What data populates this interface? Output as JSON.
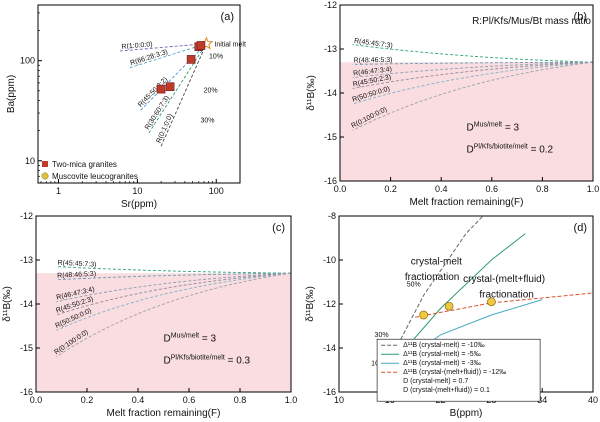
{
  "chart_data": [
    {
      "panel": "(a)",
      "type": "scatter",
      "xlabel": "Sr(ppm)",
      "ylabel": "Ba(ppm)",
      "xscale": "log",
      "yscale": "log",
      "xlim": [
        0.55,
        200
      ],
      "ylim": [
        6,
        360
      ],
      "xticks": [
        {
          "v": 1,
          "label": "1"
        },
        {
          "v": 10,
          "label": "10"
        },
        {
          "v": 100,
          "label": "100"
        }
      ],
      "yticks": [
        {
          "v": 10,
          "label": "10"
        },
        {
          "v": 100,
          "label": "100"
        }
      ],
      "initial_melt": {
        "x": 75,
        "y": 148,
        "label": "Initial melt"
      },
      "curves": [
        {
          "label": "R(1:0:0:0)",
          "from": [
            6,
            125
          ]
        },
        {
          "label": "R(66:28:3:3)",
          "from": [
            8,
            85
          ]
        },
        {
          "label": "R(45:50:3:2)",
          "from": [
            11,
            32
          ]
        },
        {
          "label": "R(30:60:7:3)",
          "from": [
            14,
            19
          ]
        },
        {
          "label": "R(0:1:0:0)",
          "from": [
            20,
            14
          ]
        }
      ],
      "pct_labels": [
        {
          "label": "10%",
          "x": 68,
          "y": 105
        },
        {
          "label": "20%",
          "x": 58,
          "y": 48
        },
        {
          "label": "30%",
          "x": 53,
          "y": 24
        }
      ],
      "series": [
        {
          "name": "Two-mica granites",
          "marker": "square",
          "color": "#c0392b",
          "points": [
            [
              20,
              52
            ],
            [
              26,
              55
            ],
            [
              48,
              103
            ],
            [
              60,
              138
            ],
            [
              64,
              142
            ]
          ]
        },
        {
          "name": "Muscovite leucogranites",
          "marker": "circle",
          "color": "#e2c13b",
          "points": []
        }
      ]
    },
    {
      "panel": "(b)",
      "type": "line",
      "title": "R:Pl/Kfs/Mus/Bt mass ratio",
      "xlabel": "Melt fraction remaining(F)",
      "ylabel": "δ¹¹B(‰)",
      "xlim": [
        0,
        1
      ],
      "ylim": [
        -16,
        -12
      ],
      "xticks": [
        {
          "v": 0,
          "label": "0.0"
        },
        {
          "v": 0.2,
          "label": "0.2"
        },
        {
          "v": 0.4,
          "label": "0.4"
        },
        {
          "v": 0.6,
          "label": "0.6"
        },
        {
          "v": 0.8,
          "label": "0.8"
        },
        {
          "v": 1,
          "label": "1.0"
        }
      ],
      "yticks": [
        {
          "v": -16,
          "label": "-16"
        },
        {
          "v": -15,
          "label": "-15"
        },
        {
          "v": -14,
          "label": "-14"
        },
        {
          "v": -13,
          "label": "-13"
        },
        {
          "v": -12,
          "label": "-12"
        }
      ],
      "shade_below": -13.3,
      "start": [
        1,
        -13.3
      ],
      "curves": [
        {
          "label": "R(45:45:7:3)",
          "end": [
            0.05,
            -12.9
          ]
        },
        {
          "label": "R(48:46:5:3)",
          "end": [
            0.05,
            -13.35
          ]
        },
        {
          "label": "R(46:47:3:4)",
          "end": [
            0.05,
            -13.65
          ]
        },
        {
          "label": "R(45:50:2:3)",
          "end": [
            0.05,
            -13.9
          ]
        },
        {
          "label": "R(50:50:0:0)",
          "end": [
            0.05,
            -14.25
          ]
        },
        {
          "label": "R(0:100:0:0)",
          "end": [
            0.05,
            -14.85
          ]
        }
      ],
      "note1": "D",
      "note1_sup": "Mus/melt",
      "note1_val": " = 3",
      "note2": "D",
      "note2_sup": "Pl/Kfs/biotite/melt",
      "note2_val": " = 0.2"
    },
    {
      "panel": "(c)",
      "type": "line",
      "xlabel": "Melt fraction remaining(F)",
      "ylabel": "δ¹¹B(‰)",
      "xlim": [
        0,
        1
      ],
      "ylim": [
        -16,
        -12
      ],
      "xticks": [
        {
          "v": 0,
          "label": "0.0"
        },
        {
          "v": 0.2,
          "label": "0.2"
        },
        {
          "v": 0.4,
          "label": "0.4"
        },
        {
          "v": 0.6,
          "label": "0.6"
        },
        {
          "v": 0.8,
          "label": "0.8"
        },
        {
          "v": 1,
          "label": "1.0"
        }
      ],
      "yticks": [
        {
          "v": -16,
          "label": "-16"
        },
        {
          "v": -15,
          "label": "-15"
        },
        {
          "v": -14,
          "label": "-14"
        },
        {
          "v": -13,
          "label": "-13"
        },
        {
          "v": -12,
          "label": "-12"
        }
      ],
      "shade_below": -13.3,
      "start": [
        1,
        -13.3
      ],
      "curves": [
        {
          "label": "R(45:45:7:3)",
          "end": [
            0.08,
            -13.15
          ]
        },
        {
          "label": "R(48:46:5:3)",
          "end": [
            0.08,
            -13.45
          ]
        },
        {
          "label": "R(46:47:3:4)",
          "end": [
            0.08,
            -13.95
          ]
        },
        {
          "label": "R(45:50:2:3)",
          "end": [
            0.08,
            -14.25
          ]
        },
        {
          "label": "R(50:50:0:0)",
          "end": [
            0.08,
            -14.6
          ]
        },
        {
          "label": "R(0:100:0:0)",
          "end": [
            0.08,
            -15.2
          ]
        }
      ],
      "note1": "D",
      "note1_sup": "Mus/melt",
      "note1_val": " = 3",
      "note2": "D",
      "note2_sup": "Pl/Kfs/biotite/melt",
      "note2_val": " = 0.3"
    },
    {
      "panel": "(d)",
      "type": "scatter",
      "xlabel": "B(ppm)",
      "ylabel": "δ¹¹B(‰)",
      "xlim": [
        10,
        40
      ],
      "ylim": [
        -16,
        -8
      ],
      "xticks": [
        {
          "v": 10,
          "label": "10"
        },
        {
          "v": 16,
          "label": "16"
        },
        {
          "v": 22,
          "label": "22"
        },
        {
          "v": 28,
          "label": "28"
        },
        {
          "v": 34,
          "label": "34"
        },
        {
          "v": 40,
          "label": "40"
        }
      ],
      "yticks": [
        {
          "v": -16,
          "label": "-16"
        },
        {
          "v": -14,
          "label": "-14"
        },
        {
          "v": -12,
          "label": "-12"
        },
        {
          "v": -10,
          "label": "-10"
        },
        {
          "v": -8,
          "label": "-8"
        }
      ],
      "points": [
        [
          15.2,
          -15.3
        ],
        [
          15.6,
          -14.2
        ],
        [
          20,
          -12.5
        ],
        [
          23,
          -12.1
        ],
        [
          28,
          -11.9
        ]
      ],
      "curves": [
        {
          "label": "Δ¹¹B (crystal-melt) = -10‰",
          "color": "#666666",
          "dash": "4,2",
          "pts": [
            [
              15,
              -15.3
            ],
            [
              20,
              -11.6
            ],
            [
              25,
              -8.8
            ],
            [
              28,
              -7.6
            ]
          ]
        },
        {
          "label": "Δ¹¹B (crystal-melt) = -5‰",
          "color": "#2e9e6a",
          "dash": "",
          "pts": [
            [
              15,
              -15.3
            ],
            [
              22,
              -12.2
            ],
            [
              28,
              -10.0
            ],
            [
              32,
              -8.8
            ]
          ]
        },
        {
          "label": "Δ¹¹B (crystal-melt) = -3‰",
          "color": "#4aa8c0",
          "dash": "",
          "pts": [
            [
              15,
              -15.3
            ],
            [
              22,
              -13.4
            ],
            [
              28,
              -12.5
            ],
            [
              34,
              -11.8
            ]
          ]
        },
        {
          "label": "Δ¹¹B (crystal-(melt+fluid)) = -12‰",
          "color": "#d8552b",
          "dash": "4,2",
          "pts": [
            [
              19,
              -12.6
            ],
            [
              28,
              -11.95
            ],
            [
              40,
              -11.5
            ]
          ]
        }
      ],
      "legend_extra": [
        "D (crystal-melt) = 0.7",
        "D (crystal-(melt+fluid)) = 0.1"
      ],
      "annotations": [
        {
          "label": "crystal-melt",
          "x": 21.5,
          "y": -10.2
        },
        {
          "label": "fractionation",
          "x": 21.0,
          "y": -10.9
        },
        {
          "label": "crystal-(melt+fluid)",
          "x": 29.5,
          "y": -11.0
        },
        {
          "label": "fractionation",
          "x": 29.8,
          "y": -11.7
        }
      ],
      "pct_labels": [
        {
          "label": "50%",
          "x": 18,
          "y": -11.2
        },
        {
          "label": "30%",
          "x": 14.2,
          "y": -13.5
        },
        {
          "label": "10%",
          "x": 13.8,
          "y": -14.8
        }
      ]
    }
  ]
}
